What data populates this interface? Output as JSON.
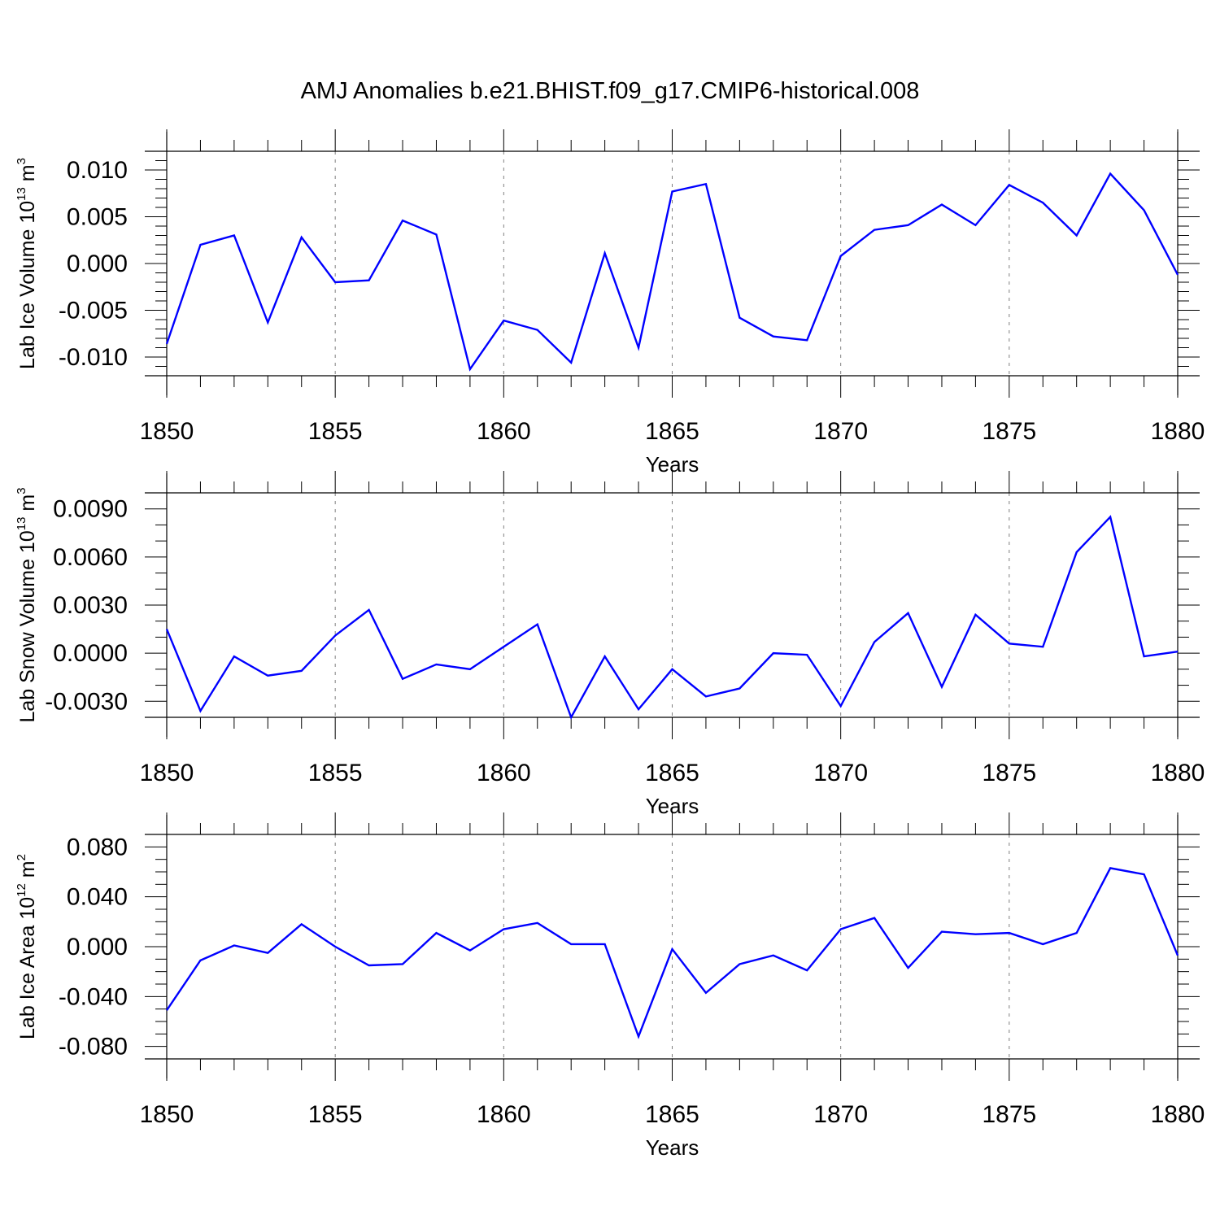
{
  "page": {
    "title": "AMJ Anomalies b.e21.BHIST.f09_g17.CMIP6-historical.008"
  },
  "colors": {
    "series": "#0000ff",
    "axis": "#000000",
    "grid": "#808080"
  },
  "chart_data": [
    {
      "type": "line",
      "title": "",
      "xlabel": "Years",
      "ylabel": "Lab Ice Volume 10",
      "ylabel_exp": "13",
      "ylabel_unit": "m",
      "ylabel_unit_exp": "3",
      "xlim": [
        1850,
        1880
      ],
      "ylim": [
        -0.012,
        0.012
      ],
      "xticks": [
        1850,
        1855,
        1860,
        1865,
        1870,
        1875,
        1880
      ],
      "xtick_labels": [
        "1850",
        "1855",
        "1860",
        "1865",
        "1870",
        "1875",
        "1880"
      ],
      "yticks": [
        -0.01,
        -0.005,
        0.0,
        0.005,
        0.01
      ],
      "ytick_labels": [
        "-0.010",
        "-0.005",
        "0.000",
        "0.005",
        "0.010"
      ],
      "yminor": 0.001,
      "grid": "vertical-dashed",
      "x": [
        1850,
        1851,
        1852,
        1853,
        1854,
        1855,
        1856,
        1857,
        1858,
        1859,
        1860,
        1861,
        1862,
        1863,
        1864,
        1865,
        1866,
        1867,
        1868,
        1869,
        1870,
        1871,
        1872,
        1873,
        1874,
        1875,
        1876,
        1877,
        1878,
        1879,
        1880
      ],
      "series": [
        {
          "name": "Lab Ice Volume",
          "values": [
            -0.0086,
            0.002,
            0.003,
            -0.0063,
            0.0028,
            -0.002,
            -0.0018,
            0.0046,
            0.0031,
            -0.0113,
            -0.0061,
            -0.0071,
            -0.0106,
            0.0011,
            -0.009,
            0.0077,
            0.0085,
            -0.0058,
            -0.0078,
            -0.0082,
            0.0008,
            0.0036,
            0.0041,
            0.0063,
            0.0041,
            0.0084,
            0.0065,
            0.003,
            0.0096,
            0.0057,
            -0.0012
          ]
        }
      ]
    },
    {
      "type": "line",
      "title": "",
      "xlabel": "Years",
      "ylabel": "Lab Snow Volume 10",
      "ylabel_exp": "13",
      "ylabel_unit": "m",
      "ylabel_unit_exp": "3",
      "xlim": [
        1850,
        1880
      ],
      "ylim": [
        -0.004,
        0.01
      ],
      "xticks": [
        1850,
        1855,
        1860,
        1865,
        1870,
        1875,
        1880
      ],
      "xtick_labels": [
        "1850",
        "1855",
        "1860",
        "1865",
        "1870",
        "1875",
        "1880"
      ],
      "yticks": [
        -0.003,
        0.0,
        0.003,
        0.006,
        0.009
      ],
      "ytick_labels": [
        "-0.0030",
        "0.0000",
        "0.0030",
        "0.0060",
        "0.0090"
      ],
      "yminor": 0.001,
      "grid": "vertical-dashed",
      "x": [
        1850,
        1851,
        1852,
        1853,
        1854,
        1855,
        1856,
        1857,
        1858,
        1859,
        1860,
        1861,
        1862,
        1863,
        1864,
        1865,
        1866,
        1867,
        1868,
        1869,
        1870,
        1871,
        1872,
        1873,
        1874,
        1875,
        1876,
        1877,
        1878,
        1879,
        1880
      ],
      "series": [
        {
          "name": "Lab Snow Volume",
          "values": [
            0.0015,
            -0.0036,
            -0.0002,
            -0.0014,
            -0.0011,
            0.0011,
            0.0027,
            -0.0016,
            -0.0007,
            -0.001,
            0.0004,
            0.0018,
            -0.004,
            -0.0002,
            -0.0035,
            -0.001,
            -0.0027,
            -0.0022,
            0.0,
            -0.0001,
            -0.0033,
            0.0007,
            0.0025,
            -0.0021,
            0.0024,
            0.0006,
            0.0004,
            0.0063,
            0.0085,
            -0.0002,
            0.0001
          ]
        }
      ]
    },
    {
      "type": "line",
      "title": "",
      "xlabel": "Years",
      "ylabel": "Lab Ice Area 10",
      "ylabel_exp": "12",
      "ylabel_unit": "m",
      "ylabel_unit_exp": "2",
      "xlim": [
        1850,
        1880
      ],
      "ylim": [
        -0.09,
        0.09
      ],
      "xticks": [
        1850,
        1855,
        1860,
        1865,
        1870,
        1875,
        1880
      ],
      "xtick_labels": [
        "1850",
        "1855",
        "1860",
        "1865",
        "1870",
        "1875",
        "1880"
      ],
      "yticks": [
        -0.08,
        -0.04,
        0.0,
        0.04,
        0.08
      ],
      "ytick_labels": [
        "-0.080",
        "-0.040",
        "0.000",
        "0.040",
        "0.080"
      ],
      "yminor": 0.01,
      "grid": "vertical-dashed",
      "x": [
        1850,
        1851,
        1852,
        1853,
        1854,
        1855,
        1856,
        1857,
        1858,
        1859,
        1860,
        1861,
        1862,
        1863,
        1864,
        1865,
        1866,
        1867,
        1868,
        1869,
        1870,
        1871,
        1872,
        1873,
        1874,
        1875,
        1876,
        1877,
        1878,
        1879,
        1880
      ],
      "series": [
        {
          "name": "Lab Ice Area",
          "values": [
            -0.051,
            -0.011,
            0.001,
            -0.005,
            0.018,
            0.0,
            -0.015,
            -0.014,
            0.011,
            -0.003,
            0.014,
            0.019,
            0.002,
            0.002,
            -0.072,
            -0.002,
            -0.037,
            -0.014,
            -0.007,
            -0.019,
            0.014,
            0.023,
            -0.017,
            0.012,
            0.01,
            0.011,
            0.002,
            0.011,
            0.063,
            0.058,
            -0.007
          ]
        }
      ]
    }
  ]
}
